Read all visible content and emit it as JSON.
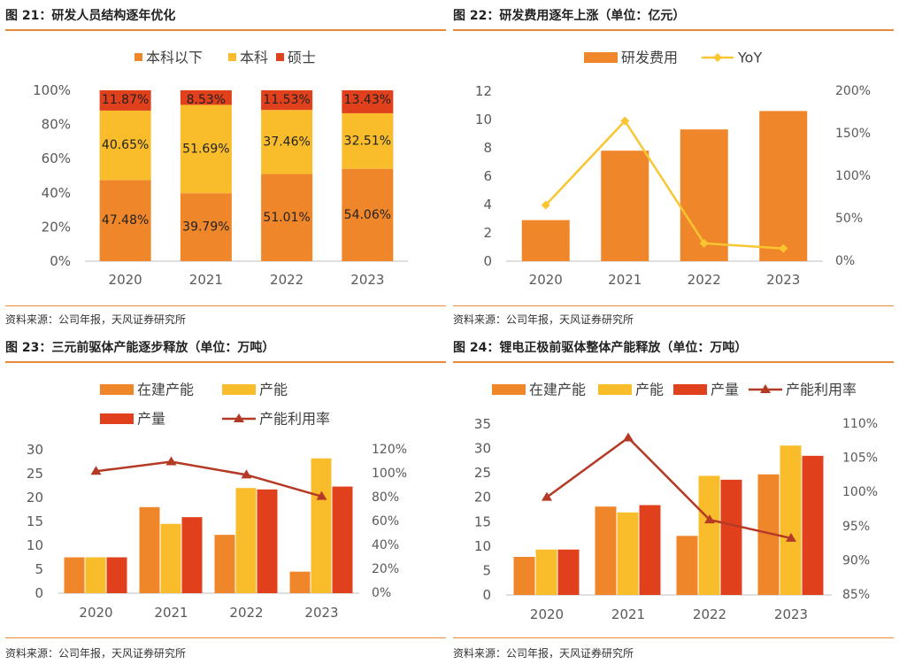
{
  "panels": [
    {
      "title": "图 21：研发人员结构逐年优化",
      "source": "资料来源：公司年报，天风证券研究所"
    },
    {
      "title": "图 22：研发费用逐年上涨（单位：亿元）",
      "source": "资料来源：公司年报，天风证券研究所"
    },
    {
      "title": "图 23：三元前驱体产能逐步释放（单位：万吨）",
      "source": "资料来源：公司年报，天风证券研究所"
    },
    {
      "title": "图 24：锂电正极前驱体整体产能释放（单位：万吨）",
      "source": "资料来源：公司年报，天风证券研究所"
    }
  ],
  "colors": {
    "orange": "#f0862a",
    "yellow": "#f9bd2b",
    "red": "#e0401b",
    "dark_red": "#b53a26",
    "line_yellow": "#f9c531",
    "axis": "#bfbfbf",
    "rule": "#e8893a"
  },
  "chart_data": [
    {
      "type": "bar",
      "stacked": true,
      "percent": true,
      "title": "研发人员结构逐年优化",
      "categories": [
        "2020",
        "2021",
        "2022",
        "2023"
      ],
      "series": [
        {
          "name": "本科以下",
          "values": [
            47.48,
            39.79,
            51.01,
            54.06
          ],
          "labels": [
            "47.48%",
            "39.79%",
            "51.01%",
            "54.06%"
          ]
        },
        {
          "name": "本科",
          "values": [
            40.65,
            51.69,
            37.46,
            32.51
          ],
          "labels": [
            "40.65%",
            "51.69%",
            "37.46%",
            "32.51%"
          ]
        },
        {
          "name": "硕士",
          "values": [
            11.87,
            8.53,
            11.53,
            13.43
          ],
          "labels": [
            "11.87%",
            "8.53%",
            "11.53%",
            "13.43%"
          ]
        }
      ],
      "ylim": [
        0,
        100
      ],
      "yticks": [
        "0%",
        "20%",
        "40%",
        "60%",
        "80%",
        "100%"
      ]
    },
    {
      "type": "bar",
      "title": "研发费用逐年上涨（单位：亿元）",
      "categories": [
        "2020",
        "2021",
        "2022",
        "2023"
      ],
      "series": [
        {
          "name": "研发费用",
          "kind": "bar",
          "axis": "left",
          "values": [
            2.9,
            7.8,
            9.3,
            10.6
          ]
        },
        {
          "name": "YoY",
          "kind": "line",
          "axis": "right",
          "values": [
            66,
            165,
            21,
            15
          ]
        }
      ],
      "ylim": [
        0,
        12
      ],
      "yticks": [
        "0",
        "2",
        "4",
        "6",
        "8",
        "10",
        "12"
      ],
      "y2lim": [
        0,
        200
      ],
      "y2ticks": [
        "0%",
        "50%",
        "100%",
        "150%",
        "200%"
      ]
    },
    {
      "type": "bar",
      "title": "三元前驱体产能逐步释放（单位：万吨）",
      "categories": [
        "2020",
        "2021",
        "2022",
        "2023"
      ],
      "series": [
        {
          "name": "在建产能",
          "kind": "bar",
          "axis": "left",
          "values": [
            7.5,
            18.0,
            12.2,
            4.5
          ]
        },
        {
          "name": "产能",
          "kind": "bar",
          "axis": "left",
          "values": [
            7.5,
            14.5,
            22.0,
            28.2
          ]
        },
        {
          "name": "产量",
          "kind": "bar",
          "axis": "left",
          "values": [
            7.5,
            15.9,
            21.7,
            22.3
          ]
        },
        {
          "name": "产能利用率",
          "kind": "line",
          "axis": "right",
          "values": [
            102,
            110,
            99,
            81
          ]
        }
      ],
      "ylim": [
        0,
        30
      ],
      "yticks": [
        "0",
        "5",
        "10",
        "15",
        "20",
        "25",
        "30"
      ],
      "y2lim": [
        0,
        120
      ],
      "y2ticks": [
        "0%",
        "20%",
        "40%",
        "60%",
        "80%",
        "100%",
        "120%"
      ]
    },
    {
      "type": "bar",
      "title": "锂电正极前驱体整体产能释放（单位：万吨）",
      "categories": [
        "2020",
        "2021",
        "2022",
        "2023"
      ],
      "series": [
        {
          "name": "在建产能",
          "kind": "bar",
          "axis": "left",
          "values": [
            7.8,
            18.1,
            12.1,
            24.7
          ]
        },
        {
          "name": "产能",
          "kind": "bar",
          "axis": "left",
          "values": [
            9.3,
            16.9,
            24.4,
            30.6
          ]
        },
        {
          "name": "产量",
          "kind": "bar",
          "axis": "left",
          "values": [
            9.3,
            18.4,
            23.6,
            28.5
          ]
        },
        {
          "name": "产能利用率",
          "kind": "line",
          "axis": "right",
          "values": [
            99.3,
            108.0,
            96.0,
            93.3
          ]
        }
      ],
      "ylim": [
        0,
        35
      ],
      "yticks": [
        "0",
        "5",
        "10",
        "15",
        "20",
        "25",
        "30",
        "35"
      ],
      "y2lim": [
        85,
        110
      ],
      "y2ticks": [
        "85%",
        "90%",
        "95%",
        "100%",
        "105%",
        "110%"
      ]
    }
  ]
}
